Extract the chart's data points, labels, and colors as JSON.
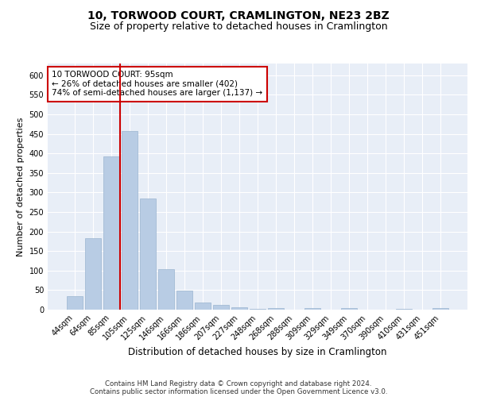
{
  "title": "10, TORWOOD COURT, CRAMLINGTON, NE23 2BZ",
  "subtitle": "Size of property relative to detached houses in Cramlington",
  "xlabel": "Distribution of detached houses by size in Cramlington",
  "ylabel": "Number of detached properties",
  "categories": [
    "44sqm",
    "64sqm",
    "85sqm",
    "105sqm",
    "125sqm",
    "146sqm",
    "166sqm",
    "186sqm",
    "207sqm",
    "227sqm",
    "248sqm",
    "268sqm",
    "288sqm",
    "309sqm",
    "329sqm",
    "349sqm",
    "370sqm",
    "390sqm",
    "410sqm",
    "431sqm",
    "451sqm"
  ],
  "values": [
    35,
    182,
    393,
    458,
    285,
    103,
    48,
    18,
    13,
    7,
    2,
    4,
    1,
    4,
    1,
    4,
    1,
    1,
    3,
    1,
    4
  ],
  "bar_color": "#b8cce4",
  "bar_edge_color": "#9ab4d0",
  "bg_color": "#e8eef7",
  "grid_color": "#ffffff",
  "vline_x_idx": 2.5,
  "vline_color": "#cc0000",
  "annotation_text": "10 TORWOOD COURT: 95sqm\n← 26% of detached houses are smaller (402)\n74% of semi-detached houses are larger (1,137) →",
  "annotation_box_facecolor": "#ffffff",
  "annotation_box_edgecolor": "#cc0000",
  "ylim": [
    0,
    630
  ],
  "yticks": [
    0,
    50,
    100,
    150,
    200,
    250,
    300,
    350,
    400,
    450,
    500,
    550,
    600
  ],
  "footer_line1": "Contains HM Land Registry data © Crown copyright and database right 2024.",
  "footer_line2": "Contains public sector information licensed under the Open Government Licence v3.0.",
  "title_fontsize": 10,
  "subtitle_fontsize": 9,
  "xlabel_fontsize": 8.5,
  "ylabel_fontsize": 8,
  "tick_fontsize": 7,
  "annotation_fontsize": 7.5,
  "footer_fontsize": 6.2
}
